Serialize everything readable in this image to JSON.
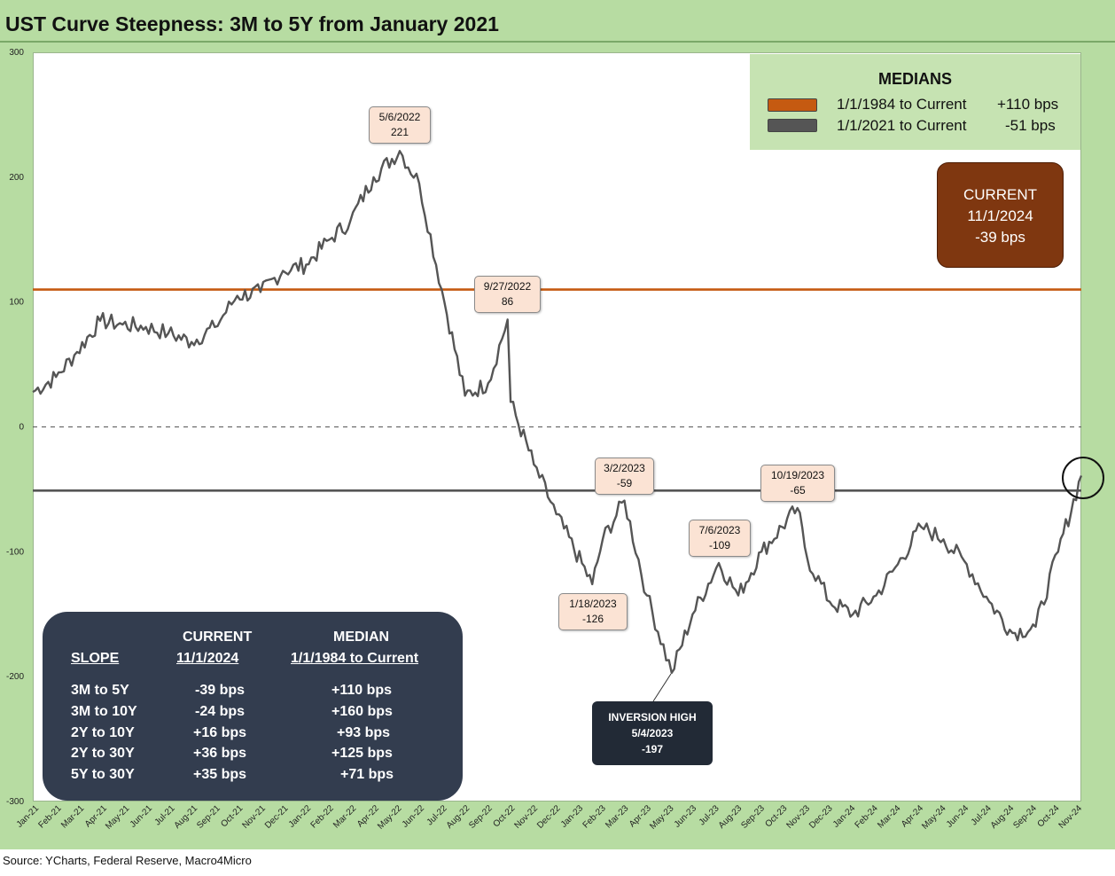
{
  "title": "UST Curve Steepness: 3M to 5Y from January 2021",
  "source": "Source: YCharts, Federal Reserve, Macro4Micro",
  "colors": {
    "series": "#555555",
    "median_long": "#c55a11",
    "median_short": "#555555",
    "zero_line": "#555555"
  },
  "chart_data": {
    "type": "line",
    "title": "UST Curve Steepness: 3M to 5Y from January 2021",
    "ylabel": "",
    "xlabel": "",
    "ylim": [
      -300,
      300
    ],
    "yticks": [
      "300",
      "200",
      "100",
      "0",
      "-100",
      "-200",
      "-300"
    ],
    "x_tick_labels": [
      "Jan-21",
      "Feb-21",
      "Mar-21",
      "Apr-21",
      "May-21",
      "Jun-21",
      "Jul-21",
      "Aug-21",
      "Sep-21",
      "Oct-21",
      "Nov-21",
      "Dec-21",
      "Jan-22",
      "Feb-22",
      "Mar-22",
      "Apr-22",
      "May-22",
      "Jun-22",
      "Jul-22",
      "Aug-22",
      "Sep-22",
      "Oct-22",
      "Nov-22",
      "Dec-22",
      "Jan-23",
      "Feb-23",
      "Mar-23",
      "Apr-23",
      "May-23",
      "Jun-23",
      "Jul-23",
      "Aug-23",
      "Sep-23",
      "Oct-23",
      "Nov-23",
      "Dec-23",
      "Jan-24",
      "Feb-24",
      "Mar-24",
      "Apr-24",
      "May-24",
      "Jun-24",
      "Jul-24",
      "Aug-24",
      "Sep-24",
      "Oct-24",
      "Nov-24"
    ],
    "series": [
      {
        "name": "",
        "x": [
          "2021-01",
          "2021-02",
          "2021-03",
          "2021-04",
          "2021-05",
          "2021-06",
          "2021-07",
          "2021-08",
          "2021-09",
          "2021-10",
          "2021-11",
          "2021-12",
          "2022-01",
          "2022-02",
          "2022-03",
          "2022-04",
          "2022-05-06",
          "2022-06",
          "2022-07",
          "2022-08",
          "2022-09-01",
          "2022-09-27",
          "2022-10",
          "2022-11",
          "2022-12",
          "2023-01-18",
          "2023-02",
          "2023-03-02",
          "2023-04",
          "2023-05-04",
          "2023-06",
          "2023-07-06",
          "2023-08",
          "2023-09",
          "2023-10-19",
          "2023-11",
          "2023-12",
          "2024-01",
          "2024-02",
          "2024-03",
          "2024-04",
          "2024-05",
          "2024-06",
          "2024-07",
          "2024-08",
          "2024-09",
          "2024-10",
          "2024-11-01"
        ],
        "values": [
          28,
          40,
          60,
          85,
          82,
          80,
          75,
          68,
          80,
          105,
          108,
          125,
          130,
          150,
          165,
          200,
          221,
          195,
          110,
          25,
          35,
          86,
          20,
          -30,
          -70,
          -126,
          -90,
          -59,
          -135,
          -197,
          -150,
          -109,
          -135,
          -100,
          -65,
          -105,
          -140,
          -150,
          -135,
          -110,
          -80,
          -90,
          -110,
          -140,
          -165,
          -160,
          -100,
          -39
        ]
      }
    ],
    "reference_lines": [
      {
        "label": "1/1/1984 to Current",
        "value": 110
      },
      {
        "label": "1/1/2021 to Current",
        "value": -51
      },
      {
        "label": "",
        "value": 0
      }
    ],
    "legend": {
      "title": "MEDIANS",
      "placement": "top-right",
      "entries": [
        {
          "label": "1/1/1984 to Current",
          "value": "+110 bps",
          "color": "#c55a11"
        },
        {
          "label": "1/1/2021 to Current",
          "value": "-51 bps",
          "color": "#555555"
        }
      ]
    },
    "annotations": [
      {
        "id": "peak",
        "date": "5/6/2022",
        "value": "221"
      },
      {
        "id": "sep22",
        "date": "9/27/2022",
        "value": "86"
      },
      {
        "id": "mar23",
        "date": "3/2/2023",
        "value": "-59"
      },
      {
        "id": "jan23",
        "date": "1/18/2023",
        "value": "-126"
      },
      {
        "id": "jul23",
        "date": "7/6/2023",
        "value": "-109"
      },
      {
        "id": "oct23",
        "date": "10/19/2023",
        "value": "-65"
      }
    ],
    "grid": false
  },
  "inversion": {
    "title": "INVERSION HIGH",
    "date": "5/4/2023",
    "value": "-197"
  },
  "current": {
    "title": "CURRENT",
    "date": "11/1/2024",
    "value": "-39 bps"
  },
  "table": {
    "headers": {
      "current_1": "CURRENT",
      "current_2": "11/1/2024",
      "median_1": "MEDIAN",
      "median_2": "1/1/1984 to Current",
      "slope": "SLOPE"
    },
    "rows": [
      {
        "slope": "3M to 5Y",
        "current": "-39 bps",
        "median": "+110 bps"
      },
      {
        "slope": "3M to 10Y",
        "current": "-24 bps",
        "median": "+160 bps"
      },
      {
        "slope": "2Y to 10Y",
        "current": "+16 bps",
        "median": "+93 bps"
      },
      {
        "slope": "2Y to 30Y",
        "current": "+36 bps",
        "median": "+125 bps"
      },
      {
        "slope": "5Y to 30Y",
        "current": "+35 bps",
        "median": "+71 bps"
      }
    ]
  }
}
